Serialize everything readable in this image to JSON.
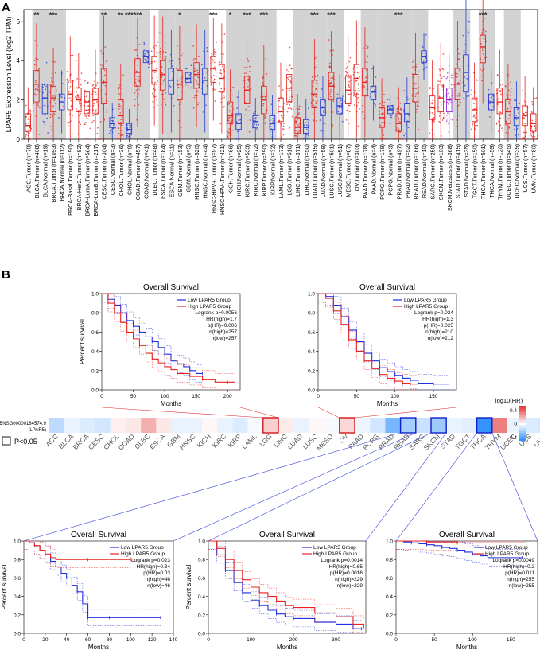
{
  "figure": {
    "panel_a_label": "A",
    "panel_b_label": "B"
  },
  "chart_data": [
    {
      "id": "panel_a",
      "type": "box",
      "ylabel": "LPAR5 Expression Level (log2 TPM)",
      "ylim": [
        0,
        6.6
      ],
      "yticks": [
        0,
        2,
        4,
        6
      ],
      "categories": [
        "ACC.Tumor (n=79)",
        "BLCA.Tumor (n=408)",
        "BLCA.Normal (n=19)",
        "BRCA.Tumor (n=1093)",
        "BRCA.Normal (n=112)",
        "BRCA-Basal.Tumor (n=190)",
        "BRCA-Her2.Tumor (n=82)",
        "BRCA-LumA.Tumor (n=564)",
        "BRCA-LumB.Tumor (n=217)",
        "CESC.Tumor (n=304)",
        "CESC.Normal (n=3)",
        "CHOL.Tumor (n=36)",
        "CHOL.Normal (n=9)",
        "COAD.Tumor (n=457)",
        "COAD.Normal (n=41)",
        "DLBC.Tumor (n=48)",
        "ESCA.Tumor (n=184)",
        "ESCA.Normal (n=11)",
        "GBM.Tumor (n=153)",
        "GBM.Normal (n=5)",
        "HNSC.Tumor (n=520)",
        "HNSC.Normal (n=44)",
        "HNSC-HPV+.Tumor (n=97)",
        "HNSC-HPV-.Tumor (n=421)",
        "KICH.Tumor (n=66)",
        "KICH.Normal (n=25)",
        "KIRC.Tumor (n=533)",
        "KIRC.Normal (n=72)",
        "KIRP.Tumor (n=290)",
        "KIRP.Normal (n=32)",
        "LAML.Tumor (n=173)",
        "LGG.Tumor (n=516)",
        "LIHC.Tumor (n=371)",
        "LIHC.Normal (n=50)",
        "LUAD.Tumor (n=515)",
        "LUAD.Normal (n=59)",
        "LUSC.Tumor (n=501)",
        "LUSC.Normal (n=51)",
        "MESO.Tumor (n=87)",
        "OV.Tumor (n=303)",
        "PAAD.Tumor (n=178)",
        "PAAD.Normal (n=4)",
        "PCPG.Tumor (n=179)",
        "PCPG.Normal (n=3)",
        "PRAD.Tumor (n=497)",
        "PRAD.Normal (n=52)",
        "READ.Tumor (n=166)",
        "READ.Normal (n=10)",
        "SARC.Tumor (n=259)",
        "SKCM.Tumor (n=103)",
        "SKCM.Metastasis (n=368)",
        "STAD.Tumor (n=415)",
        "STAD.Normal (n=35)",
        "TGCT.Tumor (n=150)",
        "THCA.Tumor (n=501)",
        "THCA.Normal (n=59)",
        "THYM.Tumor (n=120)",
        "UCEC.Tumor (n=545)",
        "UCEC.Normal (n=35)",
        "UCS.Tumor (n=57)",
        "UVM.Tumor (n=80)"
      ],
      "group": [
        "T",
        "T",
        "N",
        "T",
        "N",
        "T",
        "T",
        "T",
        "T",
        "T",
        "N",
        "T",
        "N",
        "T",
        "N",
        "T",
        "T",
        "N",
        "T",
        "N",
        "T",
        "N",
        "T",
        "T",
        "T",
        "N",
        "T",
        "N",
        "T",
        "N",
        "T",
        "T",
        "T",
        "N",
        "T",
        "N",
        "T",
        "N",
        "T",
        "T",
        "T",
        "N",
        "T",
        "N",
        "T",
        "N",
        "T",
        "N",
        "T",
        "T",
        "M",
        "T",
        "N",
        "T",
        "T",
        "N",
        "T",
        "T",
        "N",
        "T",
        "T"
      ],
      "medians": [
        0.7,
        2.8,
        2.1,
        2.1,
        1.9,
        2.3,
        2.0,
        1.9,
        2.0,
        2.9,
        0.8,
        1.2,
        0.5,
        3.4,
        4.2,
        3.5,
        3.3,
        3.0,
        2.8,
        3.1,
        3.3,
        3.0,
        3.6,
        3.1,
        1.2,
        0.8,
        2.5,
        0.9,
        2.0,
        0.8,
        1.4,
        2.6,
        0.6,
        0.6,
        2.3,
        1.6,
        2.7,
        1.7,
        2.5,
        3.1,
        2.9,
        2.4,
        1.1,
        1.5,
        0.8,
        1.3,
        2.6,
        4.2,
        1.6,
        2.1,
        2.0,
        2.8,
        3.4,
        1.5,
        4.7,
        1.9,
        1.9,
        1.4,
        1.1,
        1.2,
        0.8
      ],
      "q1": [
        0.4,
        1.9,
        1.3,
        1.4,
        1.5,
        1.5,
        1.4,
        1.3,
        1.3,
        1.8,
        0.6,
        0.8,
        0.3,
        2.7,
        3.9,
        2.8,
        2.5,
        2.3,
        2.0,
        2.9,
        2.6,
        2.3,
        2.9,
        2.4,
        0.8,
        0.5,
        1.8,
        0.6,
        1.3,
        0.5,
        0.9,
        1.9,
        0.3,
        0.3,
        1.6,
        1.2,
        2.0,
        1.3,
        1.8,
        2.3,
        2.2,
        2.0,
        0.6,
        1.3,
        0.4,
        0.9,
        1.9,
        3.9,
        1.0,
        1.4,
        1.4,
        2.0,
        2.4,
        0.9,
        3.9,
        1.5,
        1.3,
        0.8,
        0.7,
        0.7,
        0.4
      ],
      "q3": [
        1.3,
        3.5,
        2.8,
        2.7,
        2.3,
        3.0,
        2.6,
        2.4,
        2.6,
        3.6,
        1.1,
        2.0,
        0.8,
        4.1,
        4.5,
        4.2,
        4.0,
        3.6,
        3.5,
        3.4,
        3.9,
        3.6,
        4.2,
        3.8,
        1.9,
        1.3,
        3.2,
        1.2,
        2.7,
        1.2,
        2.1,
        3.3,
        1.1,
        1.0,
        3.0,
        2.0,
        3.4,
        2.1,
        3.2,
        3.8,
        3.6,
        2.7,
        1.6,
        1.7,
        1.3,
        1.8,
        3.3,
        4.5,
        2.2,
        2.8,
        2.6,
        3.6,
        4.3,
        2.1,
        5.3,
        2.3,
        2.6,
        2.0,
        1.6,
        1.7,
        1.3
      ],
      "sig": [
        "",
        "**",
        "",
        "***",
        "",
        "",
        "",
        "",
        "",
        "**",
        "",
        "**",
        "***",
        "***",
        "",
        "",
        "",
        "",
        "*",
        "",
        "",
        "",
        "***",
        "",
        "*",
        "",
        "***",
        "",
        "***",
        "",
        "",
        "",
        "",
        "",
        "***",
        "",
        "***",
        "",
        "",
        "",
        "",
        "",
        "",
        "",
        "***",
        "",
        "",
        "",
        "",
        "",
        "",
        "",
        "",
        "",
        "***",
        "",
        "",
        "",
        "",
        "",
        ""
      ],
      "colors": {
        "tumor": "#e8231f",
        "normal": "#2a3bd6",
        "metastasis": "#9a2ad6",
        "shade": "#d3d3d3"
      }
    },
    {
      "id": "panel_b_heatmap",
      "type": "heatmap",
      "row_label_1": "ENSG00000184574.9",
      "row_label_2": "(LPAR5)",
      "categories": [
        "ACC",
        "BLCA",
        "BRCA",
        "CESC",
        "CHOL",
        "COAD",
        "DLBC",
        "ESCA",
        "GBM",
        "HNSC",
        "KICH",
        "KIRC",
        "KIRP",
        "LAML",
        "LGG",
        "LIHC",
        "LUAD",
        "LUSC",
        "MESO",
        "OV",
        "PAAD",
        "PCPG",
        "PRAD",
        "READ",
        "SARC",
        "SKCM",
        "STAD",
        "TGCT",
        "THCA",
        "THYM",
        "UCEC",
        "UCS",
        "UVM"
      ],
      "values": [
        -0.15,
        -0.05,
        -0.08,
        -0.1,
        0.04,
        0.06,
        0.2,
        0.06,
        -0.05,
        -0.05,
        0.02,
        -0.05,
        -0.08,
        -0.02,
        0.12,
        0.05,
        -0.05,
        0.02,
        -0.02,
        0.1,
        -0.04,
        -0.1,
        -0.3,
        -0.2,
        -0.12,
        -0.22,
        -0.05,
        -0.07,
        -0.45,
        0.32,
        -0.05,
        -0.08,
        -0.1
      ],
      "highlighted": [
        "LGG",
        "OV",
        "READ",
        "SKCM",
        "THCA"
      ],
      "legend_title": "log10(HR)",
      "legend_ticks": [
        0.4,
        0,
        -0.4
      ],
      "sig_legend": "P<0.05"
    },
    {
      "id": "km_lgg",
      "type": "line",
      "title": "Overall Survival",
      "xlabel": "Months",
      "ylabel": "Percent survival",
      "xlim": [
        0,
        220
      ],
      "xticks": [
        0,
        50,
        100,
        150,
        200
      ],
      "ylim": [
        0,
        1
      ],
      "yticks": [
        0.0,
        0.2,
        0.4,
        0.6,
        0.8,
        1.0
      ],
      "legend": [
        "Low LPAR5 Group",
        "High LPAR5 Group"
      ],
      "stats": [
        "Logrank p=0.0056",
        "HR(high)=1.7",
        "p(HR)=0.006",
        "n(high)=257",
        "n(low)=257"
      ],
      "series": [
        {
          "name": "Low LPAR5 Group",
          "color": "#1f2ee0",
          "x": [
            0,
            10,
            20,
            30,
            40,
            50,
            60,
            70,
            80,
            90,
            100,
            110,
            120,
            130,
            140,
            150,
            160
          ],
          "y": [
            1.0,
            0.94,
            0.88,
            0.8,
            0.72,
            0.66,
            0.6,
            0.55,
            0.5,
            0.44,
            0.37,
            0.3,
            0.27,
            0.24,
            0.2,
            0.17,
            0.17
          ]
        },
        {
          "name": "High LPAR5 Group",
          "color": "#e8231f",
          "x": [
            0,
            10,
            20,
            30,
            40,
            50,
            60,
            70,
            80,
            90,
            100,
            110,
            120,
            140,
            160,
            180,
            200,
            212
          ],
          "y": [
            1.0,
            0.9,
            0.8,
            0.7,
            0.6,
            0.53,
            0.46,
            0.38,
            0.32,
            0.28,
            0.24,
            0.21,
            0.17,
            0.14,
            0.11,
            0.08,
            0.08,
            0.08
          ]
        }
      ]
    },
    {
      "id": "km_ov",
      "type": "line",
      "title": "Overall Survival",
      "xlabel": "Months",
      "ylabel": "",
      "xlim": [
        0,
        180
      ],
      "xticks": [
        0,
        50,
        100,
        150
      ],
      "ylim": [
        0,
        1
      ],
      "yticks": [
        0.0,
        0.2,
        0.4,
        0.6,
        0.8,
        1.0
      ],
      "legend": [
        "Low LPAR5 Group",
        "High LPAR5 Group"
      ],
      "stats": [
        "Logrank p=0.024",
        "HR(high)=1.3",
        "p(HR)=0.025",
        "n(high)=210",
        "n(low)=212"
      ],
      "series": [
        {
          "name": "Low LPAR5 Group",
          "color": "#1f2ee0",
          "x": [
            0,
            10,
            20,
            30,
            40,
            50,
            60,
            70,
            80,
            90,
            100,
            110,
            120,
            130,
            150,
            170
          ],
          "y": [
            1.0,
            0.97,
            0.88,
            0.76,
            0.62,
            0.5,
            0.38,
            0.3,
            0.23,
            0.19,
            0.15,
            0.12,
            0.1,
            0.07,
            0.06,
            0.06
          ]
        },
        {
          "name": "High LPAR5 Group",
          "color": "#e8231f",
          "x": [
            0,
            10,
            20,
            30,
            40,
            50,
            60,
            70,
            80,
            90,
            100,
            110,
            120,
            130
          ],
          "y": [
            1.0,
            0.95,
            0.82,
            0.68,
            0.52,
            0.4,
            0.3,
            0.22,
            0.16,
            0.12,
            0.09,
            0.07,
            0.06,
            0.06
          ]
        }
      ]
    },
    {
      "id": "km_read",
      "type": "line",
      "title": "Overall Survival",
      "xlabel": "Months",
      "ylabel": "Percent survival",
      "xlim": [
        0,
        140
      ],
      "xticks": [
        0,
        20,
        40,
        60,
        80,
        100,
        120,
        140
      ],
      "ylim": [
        0,
        1
      ],
      "yticks": [
        0.0,
        0.2,
        0.4,
        0.6,
        0.8,
        1.0
      ],
      "legend": [
        "Low LPAR5 Group",
        "High LPAR5 Group"
      ],
      "stats": [
        "Logrank p=0.023",
        "HR(high)=0.34",
        "p(HR)=0.03",
        "n(high)=46",
        "n(low)=46"
      ],
      "series": [
        {
          "name": "Low LPAR5 Group",
          "color": "#1f2ee0",
          "x": [
            0,
            5,
            10,
            15,
            20,
            25,
            30,
            35,
            40,
            45,
            50,
            55,
            60,
            70,
            80,
            100,
            128
          ],
          "y": [
            1.0,
            0.98,
            0.95,
            0.9,
            0.85,
            0.78,
            0.72,
            0.65,
            0.6,
            0.52,
            0.45,
            0.32,
            0.17,
            0.17,
            0.17,
            0.17,
            0.17
          ]
        },
        {
          "name": "High LPAR5 Group",
          "color": "#e8231f",
          "x": [
            0,
            5,
            10,
            15,
            20,
            25,
            30,
            40,
            60,
            80,
            100
          ],
          "y": [
            1.0,
            0.98,
            0.95,
            0.9,
            0.86,
            0.82,
            0.8,
            0.8,
            0.8,
            0.8,
            0.8
          ]
        }
      ]
    },
    {
      "id": "km_skcm",
      "type": "line",
      "title": "Overall Survival",
      "xlabel": "Months",
      "ylabel": "Percent survival",
      "xlim": [
        0,
        370
      ],
      "xticks": [
        0,
        100,
        200,
        300
      ],
      "ylim": [
        0,
        1
      ],
      "yticks": [
        0.0,
        0.2,
        0.4,
        0.6,
        0.8,
        1.0
      ],
      "legend": [
        "Low LPAR5 Group",
        "High LPAR5 Group"
      ],
      "stats": [
        "Logrank p=0.0014",
        "HR(high)=0.65",
        "p(HR)=0.0016",
        "n(high)=229",
        "n(low)=229"
      ],
      "series": [
        {
          "name": "Low LPAR5 Group",
          "color": "#1f2ee0",
          "x": [
            0,
            20,
            40,
            60,
            80,
            100,
            120,
            140,
            160,
            180,
            200,
            250,
            300,
            340,
            360
          ],
          "y": [
            1.0,
            0.85,
            0.68,
            0.55,
            0.44,
            0.36,
            0.3,
            0.25,
            0.21,
            0.18,
            0.16,
            0.12,
            0.1,
            0.05,
            0.05
          ]
        },
        {
          "name": "High LPAR5 Group",
          "color": "#e8231f",
          "x": [
            0,
            20,
            40,
            60,
            80,
            100,
            120,
            140,
            160,
            180,
            200,
            250,
            300,
            340,
            365
          ],
          "y": [
            1.0,
            0.92,
            0.8,
            0.68,
            0.58,
            0.5,
            0.44,
            0.4,
            0.35,
            0.3,
            0.28,
            0.22,
            0.18,
            0.1,
            0.07
          ]
        }
      ]
    },
    {
      "id": "km_thca",
      "type": "line",
      "title": "Overall Survival",
      "xlabel": "Months",
      "ylabel": "",
      "xlim": [
        0,
        185
      ],
      "xticks": [
        0,
        50,
        100,
        150
      ],
      "ylim": [
        0,
        1
      ],
      "yticks": [
        0.0,
        0.2,
        0.4,
        0.6,
        0.8,
        1.0
      ],
      "legend": [
        "Low LPAR5 Group",
        "High LPAR5 Group"
      ],
      "stats": [
        "Logrank p=0.0049",
        "HR(high)=0.2",
        "p(HR)=0.011",
        "n(high)=255",
        "n(low)=255"
      ],
      "series": [
        {
          "name": "Low LPAR5 Group",
          "color": "#1f2ee0",
          "x": [
            0,
            10,
            20,
            30,
            40,
            50,
            60,
            70,
            80,
            90,
            100,
            110,
            120,
            140,
            165
          ],
          "y": [
            1.0,
            0.99,
            0.98,
            0.97,
            0.96,
            0.95,
            0.93,
            0.92,
            0.9,
            0.88,
            0.86,
            0.84,
            0.82,
            0.82,
            0.82
          ]
        },
        {
          "name": "High LPAR5 Group",
          "color": "#e8231f",
          "x": [
            0,
            20,
            40,
            60,
            80,
            100,
            120,
            140,
            170
          ],
          "y": [
            1.0,
            1.0,
            0.99,
            0.99,
            0.98,
            0.98,
            0.98,
            0.98,
            0.98
          ]
        }
      ]
    }
  ]
}
